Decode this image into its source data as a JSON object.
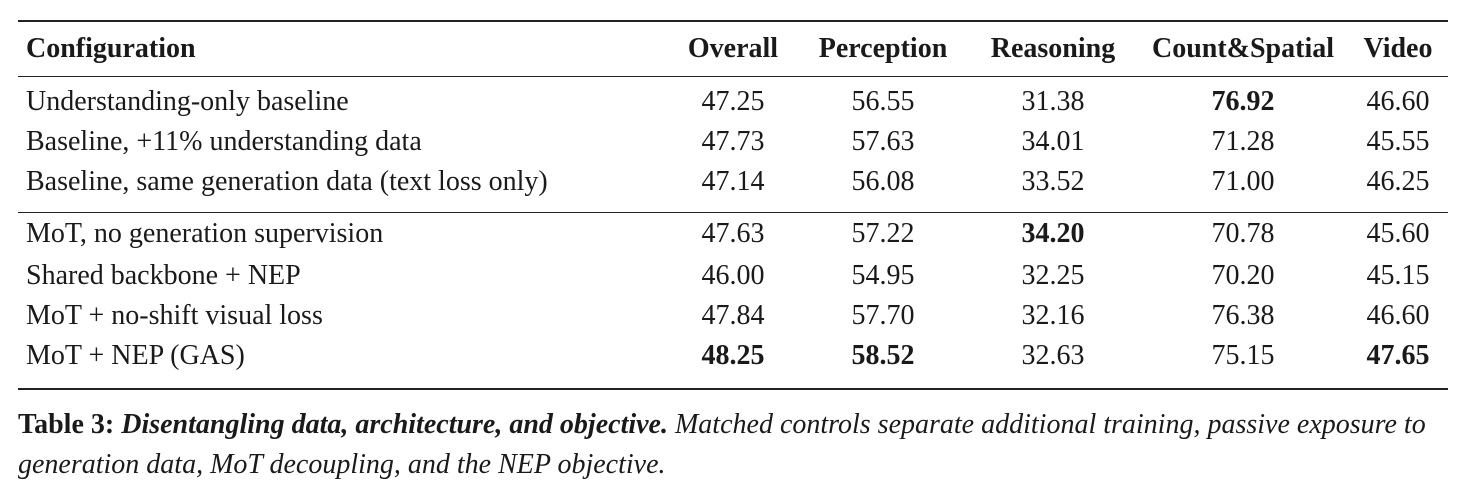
{
  "table": {
    "headers": [
      "Configuration",
      "Overall",
      "Perception",
      "Reasoning",
      "Count&Spatial",
      "Video"
    ],
    "groups": [
      [
        {
          "config": "Understanding-only baseline",
          "values": [
            "47.25",
            "56.55",
            "31.38",
            "76.92",
            "46.60"
          ],
          "bold": [
            false,
            false,
            false,
            true,
            false
          ]
        },
        {
          "config": "Baseline, +11% understanding data",
          "values": [
            "47.73",
            "57.63",
            "34.01",
            "71.28",
            "45.55"
          ],
          "bold": [
            false,
            false,
            false,
            false,
            false
          ]
        },
        {
          "config": "Baseline, same generation data (text loss only)",
          "values": [
            "47.14",
            "56.08",
            "33.52",
            "71.00",
            "46.25"
          ],
          "bold": [
            false,
            false,
            false,
            false,
            false
          ]
        }
      ],
      [
        {
          "config": "MoT, no generation supervision",
          "values": [
            "47.63",
            "57.22",
            "34.20",
            "70.78",
            "45.60"
          ],
          "bold": [
            false,
            false,
            true,
            false,
            false
          ]
        },
        {
          "config": "Shared backbone + NEP",
          "values": [
            "46.00",
            "54.95",
            "32.25",
            "70.20",
            "45.15"
          ],
          "bold": [
            false,
            false,
            false,
            false,
            false
          ]
        },
        {
          "config": "MoT + no-shift visual loss",
          "values": [
            "47.84",
            "57.70",
            "32.16",
            "76.38",
            "46.60"
          ],
          "bold": [
            false,
            false,
            false,
            false,
            false
          ]
        },
        {
          "config": "MoT + NEP (GAS)",
          "values": [
            "48.25",
            "58.52",
            "32.63",
            "75.15",
            "47.65"
          ],
          "bold": [
            true,
            true,
            false,
            false,
            true
          ]
        }
      ]
    ]
  },
  "caption": {
    "label": "Table 3:",
    "title": "Disentangling data, architecture, and objective.",
    "text": "Matched controls separate additional training, passive exposure to generation data, MoT decoupling, and the NEP objective."
  }
}
